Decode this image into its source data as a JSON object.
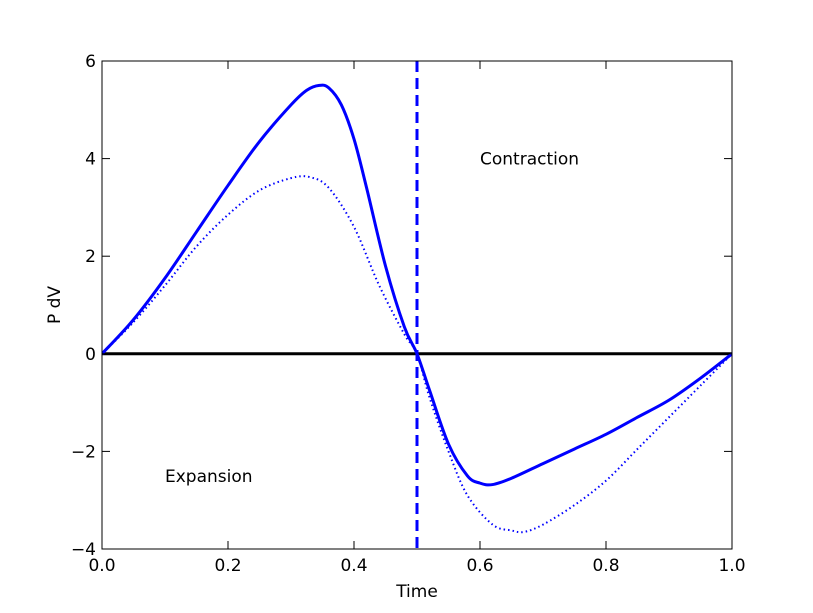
{
  "chart_data": {
    "type": "line",
    "title": "",
    "xlabel": "Time",
    "ylabel": "P dV",
    "xlim": [
      0.0,
      1.0
    ],
    "ylim": [
      -4,
      6
    ],
    "x_ticks": [
      0.0,
      0.2,
      0.4,
      0.6,
      0.8,
      1.0
    ],
    "x_tick_labels": [
      "0.0",
      "0.2",
      "0.4",
      "0.6",
      "0.8",
      "1.0"
    ],
    "y_ticks": [
      -4,
      -2,
      0,
      2,
      4,
      6
    ],
    "y_tick_labels": [
      "−4",
      "−2",
      "0",
      "2",
      "4",
      "6"
    ],
    "grid": false,
    "legend": null,
    "series": [
      {
        "style": "solid",
        "color": "#0000ff",
        "x": [
          0.0,
          0.05,
          0.1,
          0.15,
          0.2,
          0.25,
          0.3,
          0.325,
          0.345,
          0.36,
          0.38,
          0.4,
          0.42,
          0.45,
          0.48,
          0.5,
          0.52,
          0.55,
          0.58,
          0.6,
          0.62,
          0.65,
          0.7,
          0.75,
          0.8,
          0.85,
          0.9,
          0.95,
          1.0
        ],
        "y": [
          0.0,
          0.7,
          1.55,
          2.5,
          3.45,
          4.35,
          5.1,
          5.4,
          5.5,
          5.45,
          5.1,
          4.4,
          3.4,
          1.8,
          0.55,
          0.0,
          -0.75,
          -1.85,
          -2.5,
          -2.65,
          -2.68,
          -2.55,
          -2.25,
          -1.95,
          -1.65,
          -1.3,
          -0.95,
          -0.5,
          0.0
        ]
      },
      {
        "style": "dotted",
        "color": "#0000ff",
        "x": [
          0.0,
          0.05,
          0.1,
          0.15,
          0.2,
          0.25,
          0.3,
          0.33,
          0.36,
          0.4,
          0.44,
          0.48,
          0.5,
          0.52,
          0.55,
          0.58,
          0.62,
          0.65,
          0.67,
          0.7,
          0.75,
          0.8,
          0.85,
          0.9,
          0.95,
          1.0
        ],
        "y": [
          0.0,
          0.65,
          1.4,
          2.2,
          2.85,
          3.35,
          3.6,
          3.62,
          3.4,
          2.6,
          1.4,
          0.4,
          0.0,
          -0.9,
          -2.0,
          -2.9,
          -3.5,
          -3.62,
          -3.65,
          -3.5,
          -3.1,
          -2.6,
          -1.95,
          -1.3,
          -0.65,
          0.0
        ]
      }
    ],
    "reference_lines": [
      {
        "orientation": "horizontal",
        "value": 0,
        "style": "solid",
        "color": "#000000"
      },
      {
        "orientation": "vertical",
        "value": 0.5,
        "style": "dashed",
        "color": "#0000ff"
      }
    ],
    "annotations": [
      {
        "text": "Contraction",
        "x": 0.6,
        "y": 4.0
      },
      {
        "text": "Expansion",
        "x": 0.1,
        "y": -2.5
      }
    ]
  }
}
